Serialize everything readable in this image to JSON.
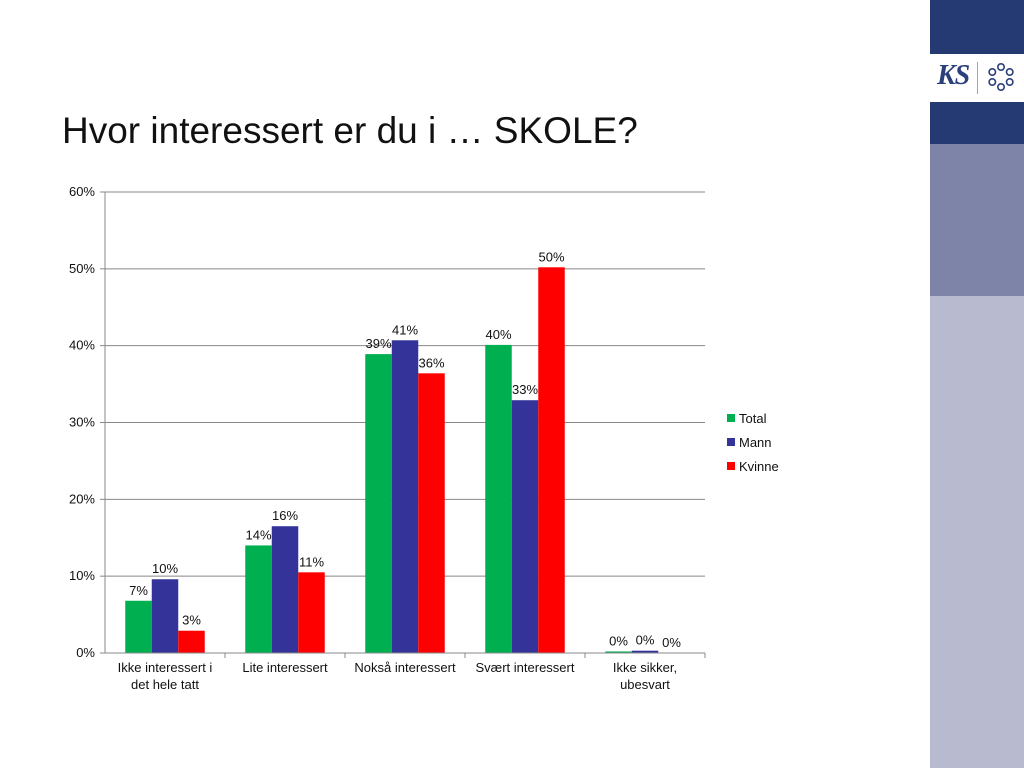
{
  "slide": {
    "title": "Hvor interessert er du i … SKOLE?",
    "logo_text": "KS"
  },
  "colors": {
    "sidebar_top": "#253a73",
    "sidebar_mid": "#7e83a8",
    "sidebar_bottom": "#b8bad0",
    "grid": "#888888",
    "axis": "#888888"
  },
  "chart_data": {
    "type": "bar",
    "categories": [
      "Ikke interessert i det hele tatt",
      "Lite interessert",
      "Nokså interessert",
      "Svært interessert",
      "Ikke sikker, ubesvart"
    ],
    "category_lines": [
      [
        "Ikke interessert i",
        "det hele tatt"
      ],
      [
        "Lite interessert"
      ],
      [
        "Nokså interessert"
      ],
      [
        "Svært interessert"
      ],
      [
        "Ikke sikker,",
        "ubesvart"
      ]
    ],
    "series": [
      {
        "name": "Total",
        "color": "#00b050",
        "values": [
          6.8,
          14.0,
          38.9,
          40.1,
          0.2
        ],
        "labels": [
          "7%",
          "14%",
          "39%",
          "40%",
          "0%"
        ]
      },
      {
        "name": "Mann",
        "color": "#333399",
        "values": [
          9.6,
          16.5,
          40.7,
          32.9,
          0.3
        ],
        "labels": [
          "10%",
          "16%",
          "41%",
          "33%",
          "0%"
        ]
      },
      {
        "name": "Kvinne",
        "color": "#ff0000",
        "values": [
          2.9,
          10.5,
          36.4,
          50.2,
          0.0
        ],
        "labels": [
          "3%",
          "11%",
          "36%",
          "50%",
          "0%"
        ]
      }
    ],
    "ylim": [
      0,
      60
    ],
    "yticks": [
      "0%",
      "10%",
      "20%",
      "30%",
      "40%",
      "50%",
      "60%"
    ],
    "ytick_values": [
      0,
      10,
      20,
      30,
      40,
      50,
      60
    ],
    "grid": true,
    "legend_position": "right"
  }
}
